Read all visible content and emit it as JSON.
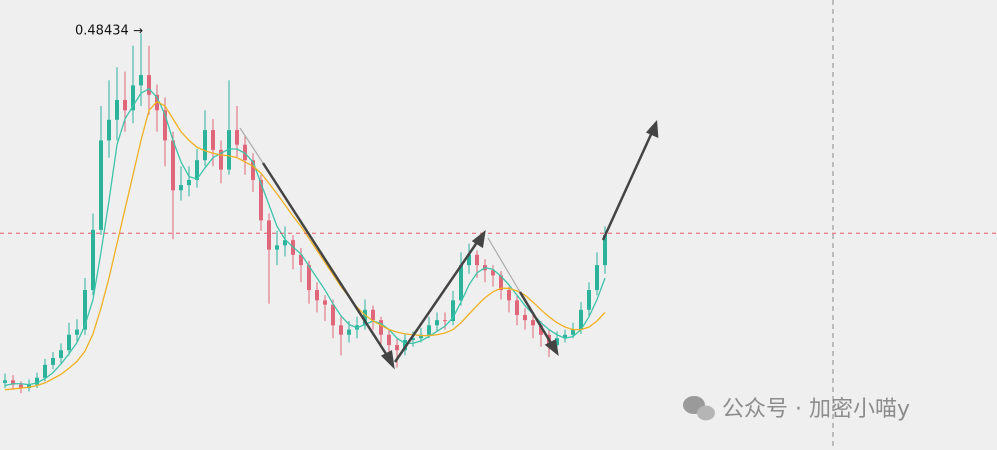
{
  "chart_data": {
    "type": "candlestick",
    "ylim": [
      0,
      0.5
    ],
    "up_color": "#2bb39c",
    "down_color": "#e0667a",
    "price_line": 0.252,
    "price_line_color": "#e05b6a",
    "ohlc": [
      [
        0.078,
        0.089,
        0.072,
        0.081
      ],
      [
        0.081,
        0.087,
        0.07,
        0.076
      ],
      [
        0.076,
        0.08,
        0.066,
        0.072
      ],
      [
        0.072,
        0.082,
        0.068,
        0.076
      ],
      [
        0.076,
        0.09,
        0.072,
        0.084
      ],
      [
        0.084,
        0.106,
        0.08,
        0.099
      ],
      [
        0.099,
        0.114,
        0.094,
        0.107
      ],
      [
        0.107,
        0.124,
        0.1,
        0.116
      ],
      [
        0.116,
        0.148,
        0.11,
        0.134
      ],
      [
        0.134,
        0.152,
        0.126,
        0.14
      ],
      [
        0.14,
        0.2,
        0.134,
        0.186
      ],
      [
        0.186,
        0.275,
        0.18,
        0.256
      ],
      [
        0.256,
        0.4,
        0.25,
        0.36
      ],
      [
        0.36,
        0.43,
        0.34,
        0.384
      ],
      [
        0.384,
        0.445,
        0.36,
        0.407
      ],
      [
        0.407,
        0.44,
        0.37,
        0.395
      ],
      [
        0.395,
        0.47,
        0.38,
        0.424
      ],
      [
        0.424,
        0.48434,
        0.4,
        0.436
      ],
      [
        0.436,
        0.47,
        0.39,
        0.413
      ],
      [
        0.413,
        0.425,
        0.37,
        0.395
      ],
      [
        0.395,
        0.41,
        0.33,
        0.36
      ],
      [
        0.36,
        0.37,
        0.245,
        0.302
      ],
      [
        0.302,
        0.33,
        0.29,
        0.308
      ],
      [
        0.308,
        0.33,
        0.295,
        0.314
      ],
      [
        0.314,
        0.35,
        0.305,
        0.337
      ],
      [
        0.337,
        0.395,
        0.33,
        0.372
      ],
      [
        0.372,
        0.385,
        0.33,
        0.349
      ],
      [
        0.349,
        0.36,
        0.31,
        0.326
      ],
      [
        0.326,
        0.43,
        0.32,
        0.372
      ],
      [
        0.372,
        0.4,
        0.34,
        0.355
      ],
      [
        0.355,
        0.365,
        0.32,
        0.337
      ],
      [
        0.337,
        0.345,
        0.3,
        0.314
      ],
      [
        0.314,
        0.32,
        0.255,
        0.267
      ],
      [
        0.267,
        0.275,
        0.17,
        0.233
      ],
      [
        0.233,
        0.255,
        0.215,
        0.238
      ],
      [
        0.238,
        0.26,
        0.225,
        0.244
      ],
      [
        0.244,
        0.25,
        0.21,
        0.227
      ],
      [
        0.227,
        0.235,
        0.195,
        0.215
      ],
      [
        0.215,
        0.22,
        0.17,
        0.186
      ],
      [
        0.186,
        0.195,
        0.16,
        0.174
      ],
      [
        0.174,
        0.18,
        0.15,
        0.169
      ],
      [
        0.169,
        0.175,
        0.13,
        0.145
      ],
      [
        0.145,
        0.155,
        0.11,
        0.134
      ],
      [
        0.134,
        0.15,
        0.125,
        0.14
      ],
      [
        0.14,
        0.155,
        0.13,
        0.145
      ],
      [
        0.145,
        0.175,
        0.14,
        0.163
      ],
      [
        0.163,
        0.168,
        0.14,
        0.151
      ],
      [
        0.151,
        0.155,
        0.12,
        0.134
      ],
      [
        0.134,
        0.14,
        0.105,
        0.122
      ],
      [
        0.122,
        0.13,
        0.096,
        0.116
      ],
      [
        0.116,
        0.135,
        0.11,
        0.128
      ],
      [
        0.128,
        0.138,
        0.12,
        0.13
      ],
      [
        0.13,
        0.142,
        0.125,
        0.134
      ],
      [
        0.134,
        0.155,
        0.13,
        0.145
      ],
      [
        0.145,
        0.16,
        0.138,
        0.151
      ],
      [
        0.151,
        0.16,
        0.14,
        0.15
      ],
      [
        0.15,
        0.185,
        0.145,
        0.174
      ],
      [
        0.174,
        0.23,
        0.168,
        0.215
      ],
      [
        0.215,
        0.24,
        0.205,
        0.227
      ],
      [
        0.227,
        0.232,
        0.2,
        0.215
      ],
      [
        0.215,
        0.222,
        0.195,
        0.209
      ],
      [
        0.209,
        0.215,
        0.19,
        0.203
      ],
      [
        0.203,
        0.208,
        0.175,
        0.186
      ],
      [
        0.186,
        0.19,
        0.16,
        0.174
      ],
      [
        0.174,
        0.18,
        0.145,
        0.157
      ],
      [
        0.157,
        0.165,
        0.14,
        0.151
      ],
      [
        0.151,
        0.158,
        0.13,
        0.145
      ],
      [
        0.145,
        0.15,
        0.12,
        0.134
      ],
      [
        0.134,
        0.14,
        0.108,
        0.122
      ],
      [
        0.122,
        0.138,
        0.115,
        0.13
      ],
      [
        0.13,
        0.14,
        0.125,
        0.134
      ],
      [
        0.134,
        0.148,
        0.13,
        0.14
      ],
      [
        0.14,
        0.172,
        0.135,
        0.163
      ],
      [
        0.163,
        0.195,
        0.155,
        0.186
      ],
      [
        0.186,
        0.23,
        0.18,
        0.215
      ],
      [
        0.215,
        0.26,
        0.205,
        0.25
      ]
    ],
    "ma": [
      {
        "color": "#3cc4a8",
        "values": [
          0.075,
          0.077,
          0.077,
          0.076,
          0.078,
          0.083,
          0.09,
          0.1,
          0.112,
          0.125,
          0.145,
          0.175,
          0.23,
          0.29,
          0.355,
          0.385,
          0.4,
          0.415,
          0.42,
          0.41,
          0.39,
          0.36,
          0.335,
          0.318,
          0.315,
          0.328,
          0.34,
          0.345,
          0.35,
          0.35,
          0.345,
          0.335,
          0.31,
          0.285,
          0.26,
          0.245,
          0.236,
          0.228,
          0.214,
          0.2,
          0.186,
          0.17,
          0.156,
          0.146,
          0.142,
          0.146,
          0.15,
          0.147,
          0.14,
          0.13,
          0.124,
          0.124,
          0.127,
          0.132,
          0.138,
          0.144,
          0.154,
          0.172,
          0.192,
          0.206,
          0.212,
          0.21,
          0.202,
          0.192,
          0.18,
          0.168,
          0.158,
          0.148,
          0.14,
          0.134,
          0.13,
          0.132,
          0.14,
          0.155,
          0.175,
          0.2
        ]
      },
      {
        "color": "#f0b020",
        "values": [
          0.07,
          0.071,
          0.072,
          0.073,
          0.075,
          0.078,
          0.083,
          0.088,
          0.095,
          0.103,
          0.115,
          0.135,
          0.165,
          0.2,
          0.24,
          0.28,
          0.32,
          0.36,
          0.395,
          0.405,
          0.4,
          0.385,
          0.37,
          0.36,
          0.352,
          0.348,
          0.345,
          0.343,
          0.342,
          0.34,
          0.335,
          0.33,
          0.322,
          0.31,
          0.298,
          0.285,
          0.272,
          0.26,
          0.246,
          0.232,
          0.218,
          0.204,
          0.19,
          0.178,
          0.166,
          0.157,
          0.15,
          0.145,
          0.14,
          0.137,
          0.135,
          0.134,
          0.133,
          0.133,
          0.134,
          0.136,
          0.14,
          0.148,
          0.158,
          0.168,
          0.177,
          0.184,
          0.188,
          0.188,
          0.185,
          0.18,
          0.172,
          0.163,
          0.155,
          0.148,
          0.143,
          0.14,
          0.14,
          0.143,
          0.15,
          0.16
        ]
      }
    ],
    "watermark": "公众号 · 加密小喵y"
  }
}
